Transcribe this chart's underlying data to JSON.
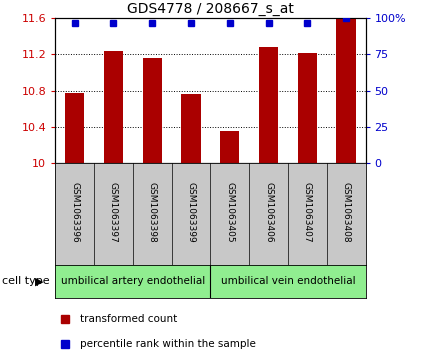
{
  "title": "GDS4778 / 208667_s_at",
  "samples": [
    "GSM1063396",
    "GSM1063397",
    "GSM1063398",
    "GSM1063399",
    "GSM1063405",
    "GSM1063406",
    "GSM1063407",
    "GSM1063408"
  ],
  "red_values": [
    10.78,
    11.24,
    11.16,
    10.76,
    10.36,
    11.28,
    11.22,
    11.6
  ],
  "blue_values": [
    97,
    97,
    97,
    97,
    97,
    97,
    97,
    100
  ],
  "ylim_left": [
    10,
    11.6
  ],
  "ylim_right": [
    0,
    100
  ],
  "yticks_left": [
    10,
    10.4,
    10.8,
    11.2,
    11.6
  ],
  "yticks_right": [
    0,
    25,
    50,
    75,
    100
  ],
  "cell_types": [
    {
      "label": "umbilical artery endothelial",
      "start": 0,
      "end": 4
    },
    {
      "label": "umbilical vein endothelial",
      "start": 4,
      "end": 8
    }
  ],
  "cell_color": "#90ee90",
  "sample_bg": "#c8c8c8",
  "bar_color": "#aa0000",
  "dot_color": "#0000cc",
  "tick_color_left": "#cc0000",
  "tick_color_right": "#0000cc",
  "cell_type_label": "cell type",
  "legend_items": [
    {
      "color": "#aa0000",
      "label": "transformed count"
    },
    {
      "color": "#0000cc",
      "label": "percentile rank within the sample"
    }
  ]
}
